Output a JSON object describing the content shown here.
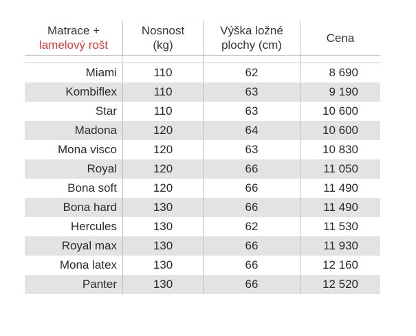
{
  "header": {
    "col1_line1": "Matrace +",
    "col1_line2": "lamelový rošt",
    "col2_line1": "Nosnost",
    "col2_line2": "(kg)",
    "col3_line1": "Výška ložné",
    "col3_line2": "plochy (cm)",
    "col4": "Cena"
  },
  "colors": {
    "accent": "#d93a3a",
    "row_shade": "#e3e3e3",
    "text": "#333333"
  },
  "rows": [
    {
      "name": "Miami",
      "load": "110",
      "height": "62",
      "price": "8 690"
    },
    {
      "name": "Kombiflex",
      "load": "110",
      "height": "63",
      "price": "9 190"
    },
    {
      "name": "Star",
      "load": "110",
      "height": "63",
      "price": "10 600"
    },
    {
      "name": "Madona",
      "load": "120",
      "height": "64",
      "price": "10 600"
    },
    {
      "name": "Mona visco",
      "load": "120",
      "height": "63",
      "price": "10 830"
    },
    {
      "name": "Royal",
      "load": "120",
      "height": "66",
      "price": "11 050"
    },
    {
      "name": "Bona soft",
      "load": "120",
      "height": "66",
      "price": "11 490"
    },
    {
      "name": "Bona hard",
      "load": "130",
      "height": "66",
      "price": "11 490"
    },
    {
      "name": "Hercules",
      "load": "130",
      "height": "62",
      "price": "11 530"
    },
    {
      "name": "Royal max",
      "load": "130",
      "height": "66",
      "price": "11 930"
    },
    {
      "name": "Mona latex",
      "load": "130",
      "height": "66",
      "price": "12 160"
    },
    {
      "name": "Panter",
      "load": "130",
      "height": "66",
      "price": "12 520"
    }
  ]
}
